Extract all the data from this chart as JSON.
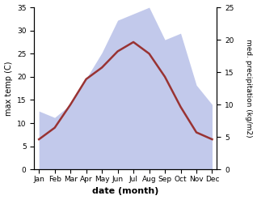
{
  "months": [
    "Jan",
    "Feb",
    "Mar",
    "Apr",
    "May",
    "Jun",
    "Jul",
    "Aug",
    "Sep",
    "Oct",
    "Nov",
    "Dec"
  ],
  "max_temp_C": [
    6.5,
    9.0,
    14.0,
    19.5,
    22.0,
    25.5,
    27.5,
    25.0,
    20.0,
    13.5,
    8.0,
    6.5
  ],
  "precip_kg": [
    9,
    8,
    10,
    14,
    18,
    23,
    24,
    25,
    20,
    21,
    13,
    10
  ],
  "temp_color": "#993333",
  "precip_fill_color": "#b8c0e8",
  "left_ylim": [
    0,
    35
  ],
  "right_ylim": [
    0,
    25
  ],
  "left_yticks": [
    0,
    5,
    10,
    15,
    20,
    25,
    30,
    35
  ],
  "right_yticks": [
    0,
    5,
    10,
    15,
    20,
    25
  ],
  "xlabel": "date (month)",
  "ylabel_left": "max temp (C)",
  "ylabel_right": "med. precipitation (kg/m2)",
  "temp_linewidth": 1.8
}
